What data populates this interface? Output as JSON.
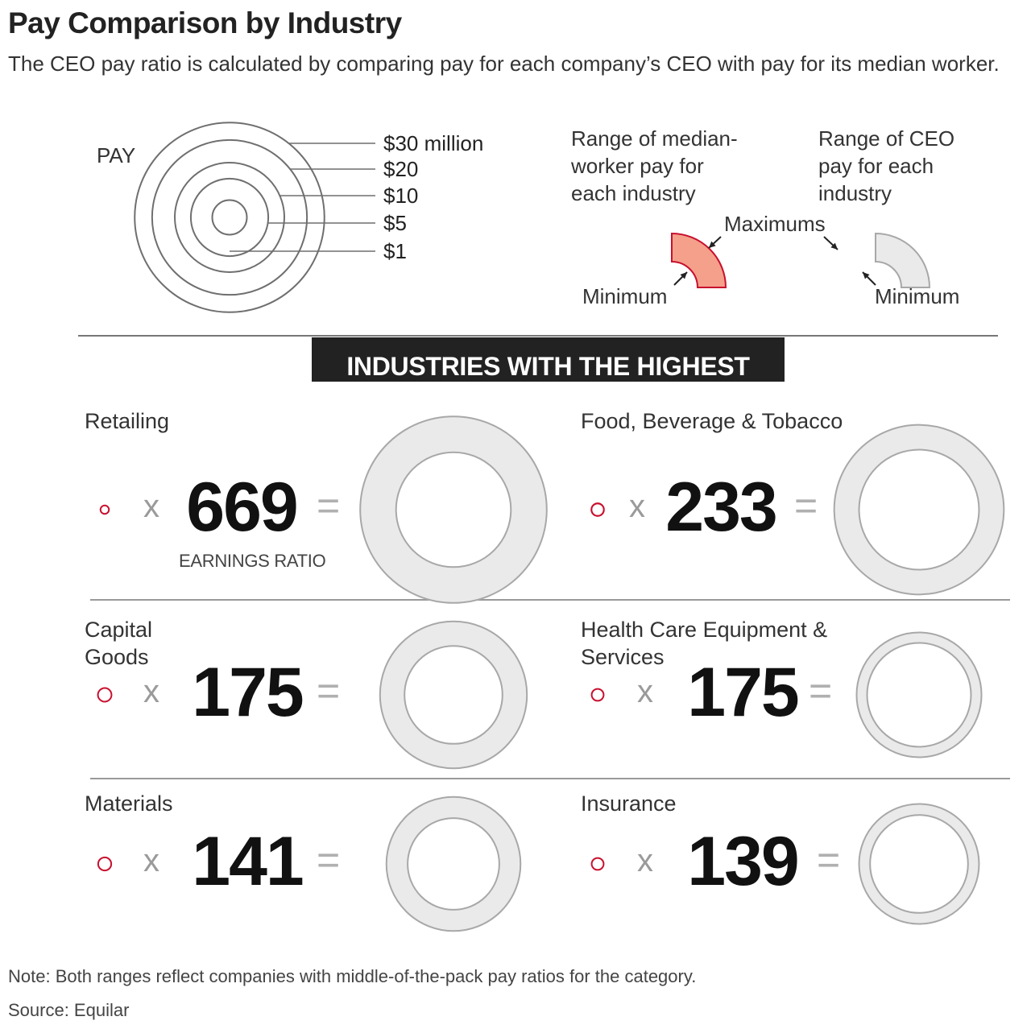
{
  "title": "Pay Comparison by Industry",
  "subtitle": "The CEO pay ratio is calculated by comparing pay for each company’s CEO with pay for its median worker.",
  "key": {
    "pay_label": "PAY",
    "scale": [
      {
        "label": "$30 million",
        "value_millions": 30
      },
      {
        "label": "$20",
        "value_millions": 20
      },
      {
        "label": "$10",
        "value_millions": 10
      },
      {
        "label": "$5",
        "value_millions": 5
      },
      {
        "label": "$1",
        "value_millions": 1
      }
    ],
    "worker_range_label": [
      "Range of median-",
      "worker pay for",
      "each industry"
    ],
    "ceo_range_label": [
      "Range of CEO",
      "pay for each",
      "industry"
    ],
    "maximums_label": "Maximums",
    "minimum_label": "Minimum"
  },
  "section_heading": "INDUSTRIES WITH THE HIGHEST",
  "times_symbol": "x",
  "equals_symbol": "=",
  "ratio_label": "EARNINGS RATIO",
  "colors": {
    "worker_fill": "#f4a08a",
    "worker_stroke": "#c8102e",
    "ceo_fill": "#eaeaea",
    "ceo_stroke": "#a8a8a8",
    "banner": "#222222"
  },
  "chart_data": {
    "type": "radial-ring comparison",
    "unit": "pay ratio (CEO pay / median-worker pay)",
    "industries": [
      {
        "name": "Retailing",
        "ratio": "669",
        "worker_pay_range_millions": [
          0.02,
          0.03
        ],
        "ceo_pay_range_millions": [
          11,
          29
        ]
      },
      {
        "name": "Food, Beverage & Tobacco",
        "ratio": "233",
        "worker_pay_range_millions": [
          0.04,
          0.07
        ],
        "ceo_pay_range_millions": [
          12,
          24
        ]
      },
      {
        "name": "Capital Goods",
        "ratio": "175",
        "worker_pay_range_millions": [
          0.05,
          0.08
        ],
        "ceo_pay_range_millions": [
          8,
          18
        ]
      },
      {
        "name": "Health Care Equipment & Services",
        "ratio": "175",
        "worker_pay_range_millions": [
          0.04,
          0.06
        ],
        "ceo_pay_range_millions": [
          9,
          13
        ]
      },
      {
        "name": "Materials",
        "ratio": "141",
        "worker_pay_range_millions": [
          0.05,
          0.07
        ],
        "ceo_pay_range_millions": [
          7,
          15
        ]
      },
      {
        "name": "Insurance",
        "ratio": "139",
        "worker_pay_range_millions": [
          0.04,
          0.06
        ],
        "ceo_pay_range_millions": [
          8,
          12
        ]
      }
    ]
  },
  "note": "Note: Both ranges reflect companies with middle-of-the-pack pay ratios for the category.",
  "source": "Source: Equilar"
}
